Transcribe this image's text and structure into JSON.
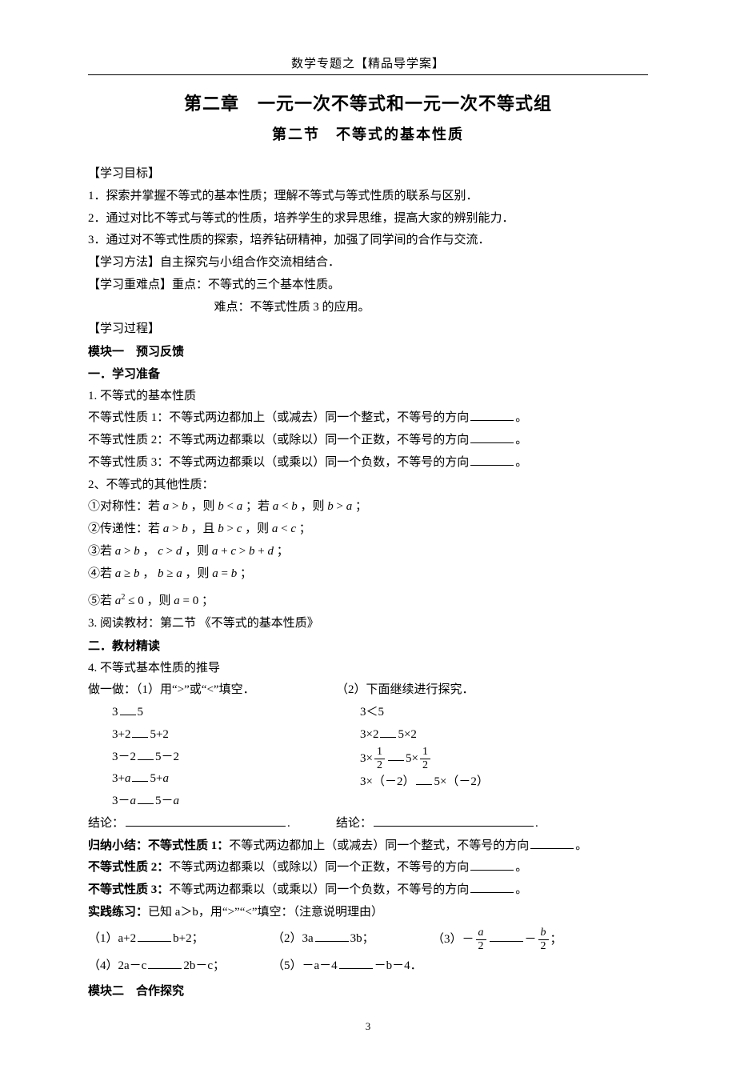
{
  "header": {
    "prefix": "数学专题之【",
    "highlight": "精品导学案",
    "suffix": "】"
  },
  "chapter_title": "第二章　一元一次不等式和一元一次不等式组",
  "section_title": "第二节　不等式的基本性质",
  "objectives": {
    "heading": "【学习目标】",
    "items": [
      "1．探索并掌握不等式的基本性质；理解不等式与等式性质的联系与区别．",
      "2．通过对比不等式与等式的性质，培养学生的求异思维，提高大家的辨别能力．",
      "3．通过对不等式性质的探索，培养钻研精神，加强了同学间的合作与交流．"
    ]
  },
  "method": {
    "heading": "【学习方法】",
    "text": "自主探究与小组合作交流相结合．"
  },
  "keypoints": {
    "heading": "【学习重难点】",
    "zd_label": "重点：",
    "zd_text": "不等式的三个基本性质。",
    "nd_label": "难点：",
    "nd_text": "不等式性质 3 的应用。"
  },
  "process_heading": "【学习过程】",
  "module1": {
    "title": "模块一　预习反馈",
    "sec1": {
      "title": "一．学习准备",
      "item1": "1. 不等式的基本性质",
      "p1_label": "不等式性质 1：",
      "p1_text": "不等式两边都加上（或减去）同一个整式，不等号的方向",
      "p2_label": "不等式性质 2：",
      "p2_text": "不等式两边都乘以（或除以）同一个正数，不等号的方向",
      "p3_label": "不等式性质 3：",
      "p3_text": "不等式两边都乘以（或乘以）同一个负数，不等号的方向",
      "item2": "2、不等式的其他性质：",
      "others": [
        "①对称性：若 a > b ，则 b < a ；若 a < b ，则 b > a ；",
        "②传递性：若 a > b ，且 b > c ，则 a < c ；",
        "③若 a > b ， c > d ，则 a + c > b + d ；",
        "④若 a ≥ b ， b ≥ a ，则 a = b ；",
        "⑤若 a² ≤ 0 ，则 a = 0 ；"
      ],
      "item3": "3. 阅读教材：第二节 《不等式的基本性质》"
    },
    "sec2": {
      "title": "二．教材精读",
      "item4": "4. 不等式基本性质的推导",
      "doit_label": "做一做：",
      "doit_left": "（1）用“>”或“<”填空．",
      "doit_right": "（2）下面继续进行探究．",
      "left_lines": [
        "3__5",
        "3+2__5+2",
        "3－2__5－2",
        "3+a__5+a",
        "3－a__5－a"
      ],
      "right_lines": {
        "l1": "3＜5",
        "l2": "3×2__5×2",
        "l3_pre": "3×",
        "l3_mid": "__5×",
        "l4": "3×（－2）__5×（－2）"
      },
      "conclusion_label": "结论：",
      "summary_label": "归纳小结：",
      "summary_p1_label": "不等式性质 1：",
      "summary_p1_text": "不等式两边都加上（或减去）同一个整式，不等号的方向",
      "summary_p2_label": "不等式性质 2：",
      "summary_p2_text": "不等式两边都乘以（或除以）同一个正数，不等号的方向",
      "summary_p3_label": "不等式性质 3：",
      "summary_p3_text": "不等式两边都乘以（或乘以）同一个负数，不等号的方向",
      "practice_label": "实践练习：",
      "practice_text": "已知 a＞b，用“>”“<”填空：（注意说明理由）",
      "practice": {
        "q1": "（1）a+2____b+2；",
        "q2": "（2）3a____3b；",
        "q4": "（4）2a－c____2b－c；",
        "q5": "（5）－a－4____－b－4．"
      }
    }
  },
  "module2": {
    "title": "模块二　合作探究"
  },
  "page_number": "3",
  "period": "。",
  "period_full": "．"
}
